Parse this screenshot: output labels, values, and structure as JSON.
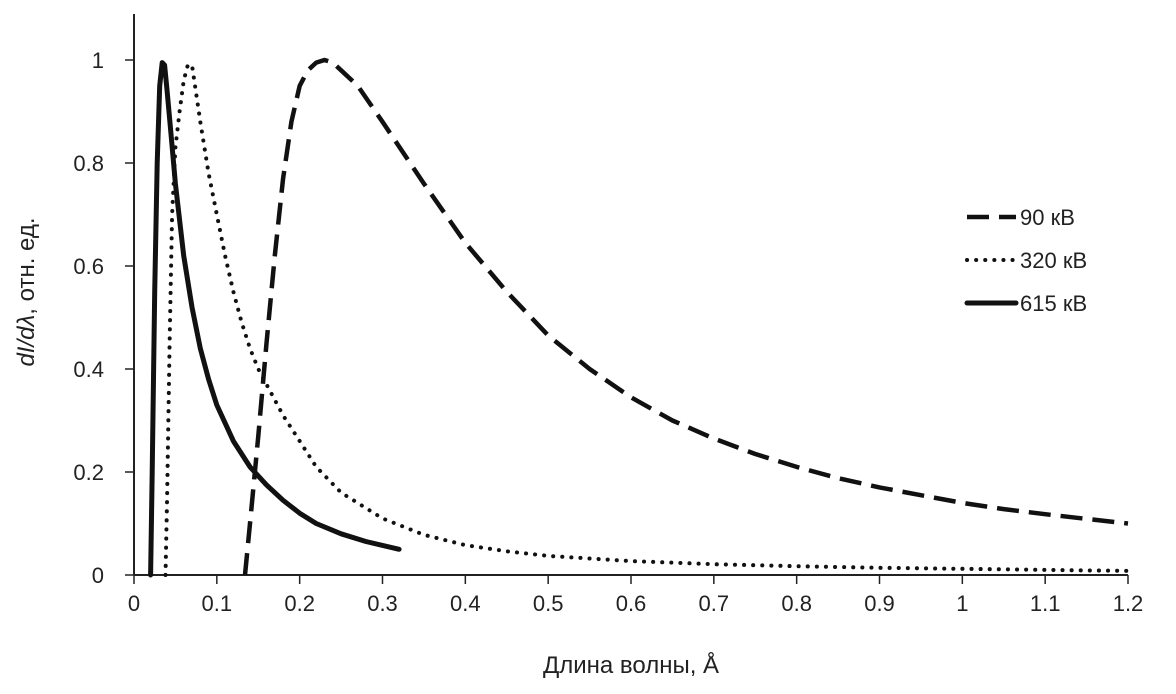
{
  "chart_data": {
    "type": "line",
    "title": "",
    "xlabel": "Длина волны, Å",
    "ylabel_parts": [
      "d",
      "I",
      "/d",
      "λ",
      ", отн. ед."
    ],
    "xlim": [
      0,
      1.2
    ],
    "ylim": [
      0,
      1.0
    ],
    "x_ticks": [
      0,
      0.1,
      0.2,
      0.3,
      0.4,
      0.5,
      0.6,
      0.7,
      0.8,
      0.9,
      1.0,
      1.1,
      1.2
    ],
    "x_tick_labels": [
      "0",
      "0.1",
      "0.2",
      "0.3",
      "0.4",
      "0.5",
      "0.6",
      "0.7",
      "0.8",
      "0.9",
      "1",
      "1.1",
      "1.2"
    ],
    "y_ticks": [
      0,
      0.2,
      0.4,
      0.6,
      0.8,
      1.0
    ],
    "y_tick_labels": [
      "0",
      "0.2",
      "0.4",
      "0.6",
      "0.8",
      "1"
    ],
    "grid": false,
    "legend_position": "right",
    "series": [
      {
        "name": "90 кВ",
        "style": "dashed",
        "color": "#111111",
        "points": [
          [
            0.134,
            0.0
          ],
          [
            0.14,
            0.1
          ],
          [
            0.15,
            0.27
          ],
          [
            0.16,
            0.45
          ],
          [
            0.17,
            0.62
          ],
          [
            0.18,
            0.77
          ],
          [
            0.19,
            0.88
          ],
          [
            0.2,
            0.95
          ],
          [
            0.21,
            0.98
          ],
          [
            0.22,
            0.995
          ],
          [
            0.23,
            1.0
          ],
          [
            0.24,
            0.995
          ],
          [
            0.25,
            0.98
          ],
          [
            0.27,
            0.95
          ],
          [
            0.3,
            0.88
          ],
          [
            0.35,
            0.76
          ],
          [
            0.4,
            0.645
          ],
          [
            0.45,
            0.55
          ],
          [
            0.5,
            0.465
          ],
          [
            0.55,
            0.4
          ],
          [
            0.6,
            0.345
          ],
          [
            0.65,
            0.3
          ],
          [
            0.7,
            0.265
          ],
          [
            0.75,
            0.235
          ],
          [
            0.8,
            0.21
          ],
          [
            0.85,
            0.188
          ],
          [
            0.9,
            0.17
          ],
          [
            0.95,
            0.155
          ],
          [
            1.0,
            0.14
          ],
          [
            1.05,
            0.128
          ],
          [
            1.1,
            0.118
          ],
          [
            1.15,
            0.109
          ],
          [
            1.2,
            0.1
          ]
        ]
      },
      {
        "name": "320 кВ",
        "style": "dotted",
        "color": "#111111",
        "points": [
          [
            0.038,
            0.0
          ],
          [
            0.04,
            0.15
          ],
          [
            0.043,
            0.45
          ],
          [
            0.046,
            0.7
          ],
          [
            0.05,
            0.83
          ],
          [
            0.055,
            0.9
          ],
          [
            0.06,
            0.96
          ],
          [
            0.065,
            0.99
          ],
          [
            0.07,
            0.99
          ],
          [
            0.08,
            0.88
          ],
          [
            0.09,
            0.78
          ],
          [
            0.1,
            0.7
          ],
          [
            0.11,
            0.62
          ],
          [
            0.12,
            0.55
          ],
          [
            0.13,
            0.49
          ],
          [
            0.14,
            0.44
          ],
          [
            0.15,
            0.4
          ],
          [
            0.16,
            0.37
          ],
          [
            0.18,
            0.31
          ],
          [
            0.2,
            0.26
          ],
          [
            0.22,
            0.21
          ],
          [
            0.25,
            0.16
          ],
          [
            0.3,
            0.11
          ],
          [
            0.35,
            0.078
          ],
          [
            0.4,
            0.058
          ],
          [
            0.45,
            0.046
          ],
          [
            0.5,
            0.037
          ],
          [
            0.6,
            0.027
          ],
          [
            0.7,
            0.021
          ],
          [
            0.8,
            0.017
          ],
          [
            0.9,
            0.014
          ],
          [
            1.0,
            0.012
          ],
          [
            1.1,
            0.01
          ],
          [
            1.2,
            0.008
          ]
        ]
      },
      {
        "name": "615 кВ",
        "style": "solid",
        "color": "#111111",
        "points": [
          [
            0.02,
            0.0
          ],
          [
            0.022,
            0.2
          ],
          [
            0.025,
            0.55
          ],
          [
            0.028,
            0.8
          ],
          [
            0.031,
            0.95
          ],
          [
            0.034,
            0.995
          ],
          [
            0.037,
            0.99
          ],
          [
            0.04,
            0.94
          ],
          [
            0.045,
            0.85
          ],
          [
            0.05,
            0.76
          ],
          [
            0.06,
            0.62
          ],
          [
            0.07,
            0.52
          ],
          [
            0.08,
            0.44
          ],
          [
            0.09,
            0.38
          ],
          [
            0.1,
            0.33
          ],
          [
            0.12,
            0.26
          ],
          [
            0.14,
            0.21
          ],
          [
            0.16,
            0.175
          ],
          [
            0.18,
            0.145
          ],
          [
            0.2,
            0.12
          ],
          [
            0.22,
            0.1
          ],
          [
            0.25,
            0.08
          ],
          [
            0.28,
            0.065
          ],
          [
            0.32,
            0.05
          ]
        ]
      }
    ]
  }
}
